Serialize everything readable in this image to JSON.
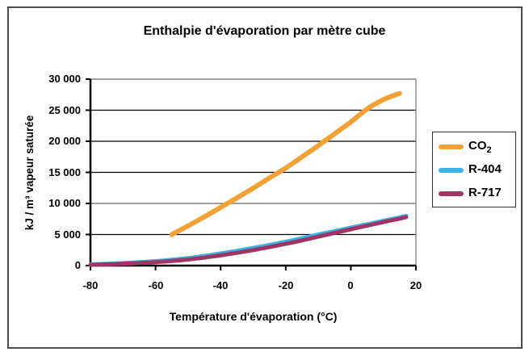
{
  "chart_data": {
    "type": "line",
    "title": "Enthalpie d'évaporation par mètre cube",
    "xlabel": "Température d'évaporation (°C)",
    "ylabel": "kJ / m³ vapeur saturée",
    "x_range": [
      -80,
      20
    ],
    "y_range": [
      0,
      30000
    ],
    "grid": "horizontal-major",
    "legend_position": "right",
    "x_tick_values": [
      -80,
      -60,
      -40,
      -20,
      0,
      20
    ],
    "x_tick_labels": [
      "-80",
      "-60",
      "-40",
      "-20",
      "0",
      "20"
    ],
    "y_tick_values": [
      30000,
      25000,
      20000,
      15000,
      10000,
      5000,
      0
    ],
    "y_tick_labels": [
      "30 000",
      "25 000",
      "20 000",
      "15 000",
      "10 000",
      "5 000",
      "0"
    ],
    "gridlines": [
      {
        "value": 30000,
        "color": "#808080",
        "width": 1.5
      },
      {
        "value": 25000,
        "color": "#000000",
        "width": 1.2
      },
      {
        "value": 20000,
        "color": "#000000",
        "width": 1.2
      },
      {
        "value": 15000,
        "color": "#000000",
        "width": 1.2
      },
      {
        "value": 10000,
        "color": "#808080",
        "width": 1.5
      },
      {
        "value": 5000,
        "color": "#000000",
        "width": 1.2
      }
    ],
    "axis_color": "#000000",
    "plot_border_color": "#808080",
    "frame_border_color": "#4d4d4d",
    "series": [
      {
        "name": "CO2",
        "label": "CO",
        "label_sub": "2",
        "color": "#F2A233",
        "width": 6,
        "points": [
          [
            -55,
            5000
          ],
          [
            -50,
            6400
          ],
          [
            -45,
            7850
          ],
          [
            -40,
            9350
          ],
          [
            -35,
            10900
          ],
          [
            -30,
            12450
          ],
          [
            -25,
            14100
          ],
          [
            -20,
            15700
          ],
          [
            -15,
            17500
          ],
          [
            -10,
            19300
          ],
          [
            -5,
            21200
          ],
          [
            0,
            23100
          ],
          [
            5,
            25200
          ],
          [
            10,
            26700
          ],
          [
            15,
            27700
          ]
        ]
      },
      {
        "name": "R-404",
        "label": "R-404",
        "label_sub": "",
        "color": "#3BB3E3",
        "width": 5,
        "points": [
          [
            -80,
            200
          ],
          [
            -75,
            290
          ],
          [
            -70,
            400
          ],
          [
            -65,
            545
          ],
          [
            -60,
            720
          ],
          [
            -55,
            940
          ],
          [
            -50,
            1200
          ],
          [
            -45,
            1550
          ],
          [
            -40,
            1950
          ],
          [
            -35,
            2380
          ],
          [
            -30,
            2850
          ],
          [
            -25,
            3330
          ],
          [
            -20,
            3850
          ],
          [
            -15,
            4400
          ],
          [
            -10,
            5000
          ],
          [
            -5,
            5550
          ],
          [
            0,
            6100
          ],
          [
            5,
            6650
          ],
          [
            10,
            7200
          ],
          [
            15,
            7750
          ],
          [
            17,
            8000
          ]
        ]
      },
      {
        "name": "R-717",
        "label": "R-717",
        "label_sub": "",
        "color": "#9E3566",
        "width": 5,
        "points": [
          [
            -80,
            120
          ],
          [
            -75,
            190
          ],
          [
            -70,
            280
          ],
          [
            -65,
            400
          ],
          [
            -60,
            550
          ],
          [
            -55,
            740
          ],
          [
            -50,
            980
          ],
          [
            -45,
            1290
          ],
          [
            -40,
            1650
          ],
          [
            -35,
            2050
          ],
          [
            -30,
            2500
          ],
          [
            -25,
            2980
          ],
          [
            -20,
            3500
          ],
          [
            -15,
            4050
          ],
          [
            -10,
            4650
          ],
          [
            -5,
            5250
          ],
          [
            0,
            5850
          ],
          [
            5,
            6420
          ],
          [
            10,
            7000
          ],
          [
            15,
            7550
          ],
          [
            17,
            7800
          ]
        ]
      }
    ]
  }
}
